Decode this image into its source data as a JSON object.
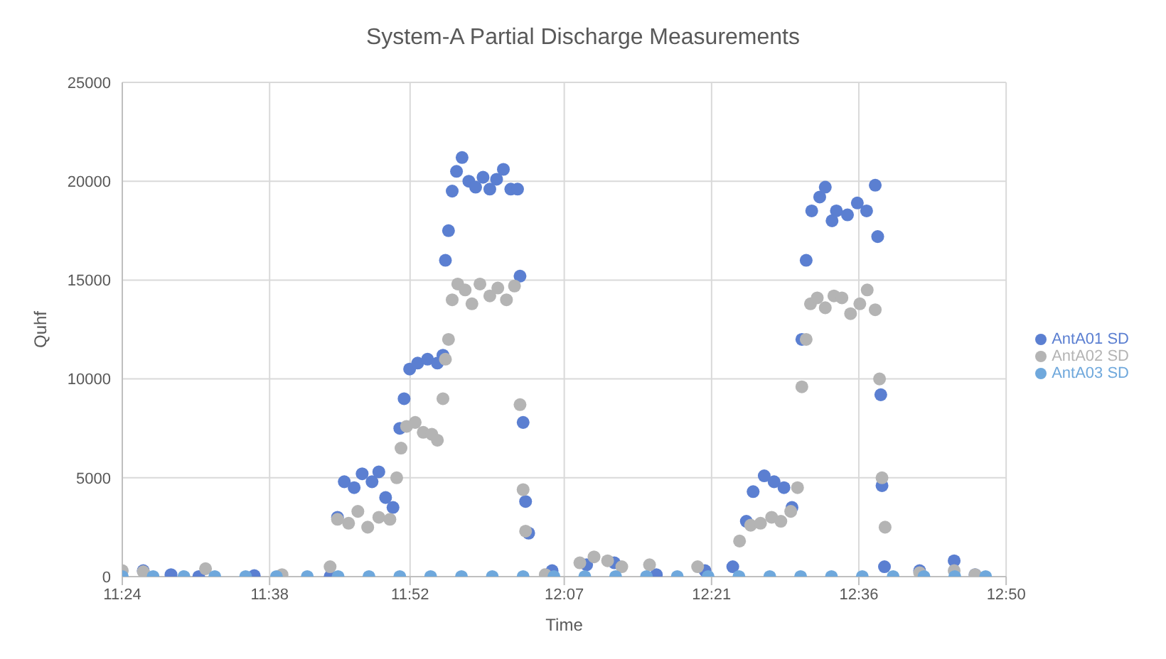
{
  "chart_data": {
    "type": "scatter",
    "title": "System-A Partial Discharge Measurements",
    "xlabel": "Time",
    "ylabel": "Quhf",
    "xlim": [
      11.4,
      12.8333
    ],
    "xticks": [
      {
        "value": 11.4,
        "label": "11:24"
      },
      {
        "value": 11.6389,
        "label": "11:38"
      },
      {
        "value": 11.8667,
        "label": "11:52"
      },
      {
        "value": 12.1167,
        "label": "12:07"
      },
      {
        "value": 12.3556,
        "label": "12:21"
      },
      {
        "value": 12.5944,
        "label": "12:36"
      },
      {
        "value": 12.8333,
        "label": "12:50"
      }
    ],
    "ylim": [
      0,
      25000
    ],
    "yticks": [
      0,
      5000,
      10000,
      15000,
      20000,
      25000
    ],
    "grid": true,
    "legend": "right",
    "marker": "circle",
    "series": [
      {
        "name": "AntA01 SD",
        "color": "#5b7fd1",
        "x": [
          11.434,
          11.479,
          11.524,
          11.614,
          11.737,
          11.749,
          11.76,
          11.776,
          11.789,
          11.805,
          11.816,
          11.827,
          11.839,
          11.85,
          11.857,
          11.866,
          11.879,
          11.895,
          11.911,
          11.92,
          11.924,
          11.929,
          11.935,
          11.942,
          11.951,
          11.962,
          11.973,
          11.985,
          11.996,
          12.007,
          12.018,
          12.03,
          12.041,
          12.045,
          12.05,
          12.054,
          12.059,
          12.097,
          12.153,
          12.198,
          12.266,
          12.345,
          12.39,
          12.412,
          12.423,
          12.441,
          12.457,
          12.473,
          12.486,
          12.502,
          12.509,
          12.518,
          12.531,
          12.54,
          12.551,
          12.558,
          12.576,
          12.592,
          12.607,
          12.621,
          12.625,
          12.63,
          12.632,
          12.636,
          12.693,
          12.749,
          12.783
        ],
        "values": [
          300,
          100,
          0,
          50,
          0,
          3000,
          4800,
          4500,
          5200,
          4800,
          5300,
          4000,
          3500,
          7500,
          9000,
          10500,
          10800,
          11000,
          10800,
          11200,
          16000,
          17500,
          19500,
          20500,
          21200,
          20000,
          19700,
          20200,
          19600,
          20100,
          20600,
          19600,
          19600,
          15200,
          7800,
          3800,
          2200,
          300,
          600,
          700,
          100,
          300,
          500,
          2800,
          4300,
          5100,
          4800,
          4500,
          3500,
          12000,
          16000,
          18500,
          19200,
          19700,
          18000,
          18500,
          18300,
          18900,
          18500,
          19800,
          17200,
          9200,
          4600,
          500,
          300,
          800,
          100
        ]
      },
      {
        "name": "AntA02 SD",
        "color": "#b4b4b4",
        "x": [
          11.4,
          11.434,
          11.535,
          11.659,
          11.737,
          11.749,
          11.767,
          11.782,
          11.798,
          11.816,
          11.834,
          11.845,
          11.852,
          11.861,
          11.875,
          11.888,
          11.902,
          11.911,
          11.92,
          11.924,
          11.929,
          11.935,
          11.944,
          11.956,
          11.967,
          11.98,
          11.996,
          12.009,
          12.023,
          12.036,
          12.045,
          12.05,
          12.054,
          12.086,
          12.142,
          12.165,
          12.187,
          12.21,
          12.255,
          12.333,
          12.401,
          12.419,
          12.435,
          12.453,
          12.468,
          12.484,
          12.495,
          12.502,
          12.509,
          12.516,
          12.527,
          12.54,
          12.554,
          12.567,
          12.581,
          12.596,
          12.608,
          12.621,
          12.628,
          12.632,
          12.637,
          12.693,
          12.749,
          12.783
        ],
        "values": [
          300,
          250,
          400,
          100,
          500,
          2900,
          2700,
          3300,
          2500,
          3000,
          2900,
          5000,
          6500,
          7600,
          7800,
          7300,
          7200,
          6900,
          9000,
          11000,
          12000,
          14000,
          14800,
          14500,
          13800,
          14800,
          14200,
          14600,
          14000,
          14700,
          8700,
          4400,
          2300,
          100,
          700,
          1000,
          800,
          500,
          600,
          500,
          1800,
          2600,
          2700,
          3000,
          2800,
          3300,
          4500,
          9600,
          12000,
          13800,
          14100,
          13600,
          14200,
          14100,
          13300,
          13800,
          14500,
          13500,
          10000,
          5000,
          2500,
          200,
          300,
          100
        ]
      },
      {
        "name": "AntA03 SD",
        "color": "#6fa8dc",
        "x": [
          11.4,
          11.45,
          11.5,
          11.55,
          11.6,
          11.65,
          11.7,
          11.75,
          11.8,
          11.85,
          11.9,
          11.95,
          12.0,
          12.05,
          12.1,
          12.15,
          12.2,
          12.25,
          12.3,
          12.35,
          12.4,
          12.45,
          12.5,
          12.55,
          12.6,
          12.65,
          12.7,
          12.75,
          12.8
        ],
        "values": [
          0,
          0,
          0,
          0,
          0,
          0,
          0,
          0,
          0,
          0,
          0,
          0,
          0,
          0,
          0,
          0,
          0,
          0,
          0,
          0,
          0,
          0,
          0,
          0,
          0,
          0,
          0,
          0,
          0
        ]
      }
    ]
  }
}
